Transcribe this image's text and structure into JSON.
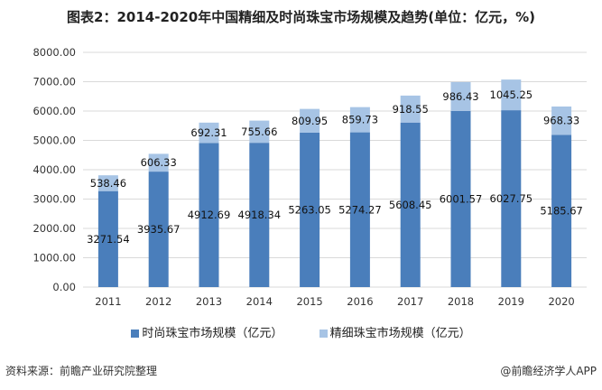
{
  "title": "图表2：2014-2020年中国精细及时尚珠宝市场规模及趋势(单位：亿元，%)",
  "chart_data": {
    "type": "bar",
    "stacked": true,
    "categories": [
      "2011",
      "2012",
      "2013",
      "2014",
      "2015",
      "2016",
      "2017",
      "2018",
      "2019",
      "2020"
    ],
    "series": [
      {
        "name": "时尚珠宝市场规模（亿元）",
        "color": "#4a7ebb",
        "values": [
          3271.54,
          3935.67,
          4912.69,
          4918.34,
          5263.05,
          5274.27,
          5608.45,
          6001.57,
          6027.75,
          5185.67
        ]
      },
      {
        "name": "精细珠宝市场规模（亿元）",
        "color": "#a7c4e5",
        "values": [
          538.46,
          606.33,
          692.31,
          755.66,
          809.95,
          859.73,
          918.55,
          986.43,
          1045.25,
          968.33
        ]
      }
    ],
    "yticks": [
      "0.00",
      "1000.00",
      "2000.00",
      "3000.00",
      "4000.00",
      "5000.00",
      "6000.00",
      "7000.00",
      "8000.00"
    ],
    "ylim": [
      0,
      8000
    ],
    "grid": true,
    "legend": "bottom"
  },
  "footer": {
    "source": "资料来源：前瞻产业研究院整理",
    "credit": "@前瞻经济学人APP"
  }
}
